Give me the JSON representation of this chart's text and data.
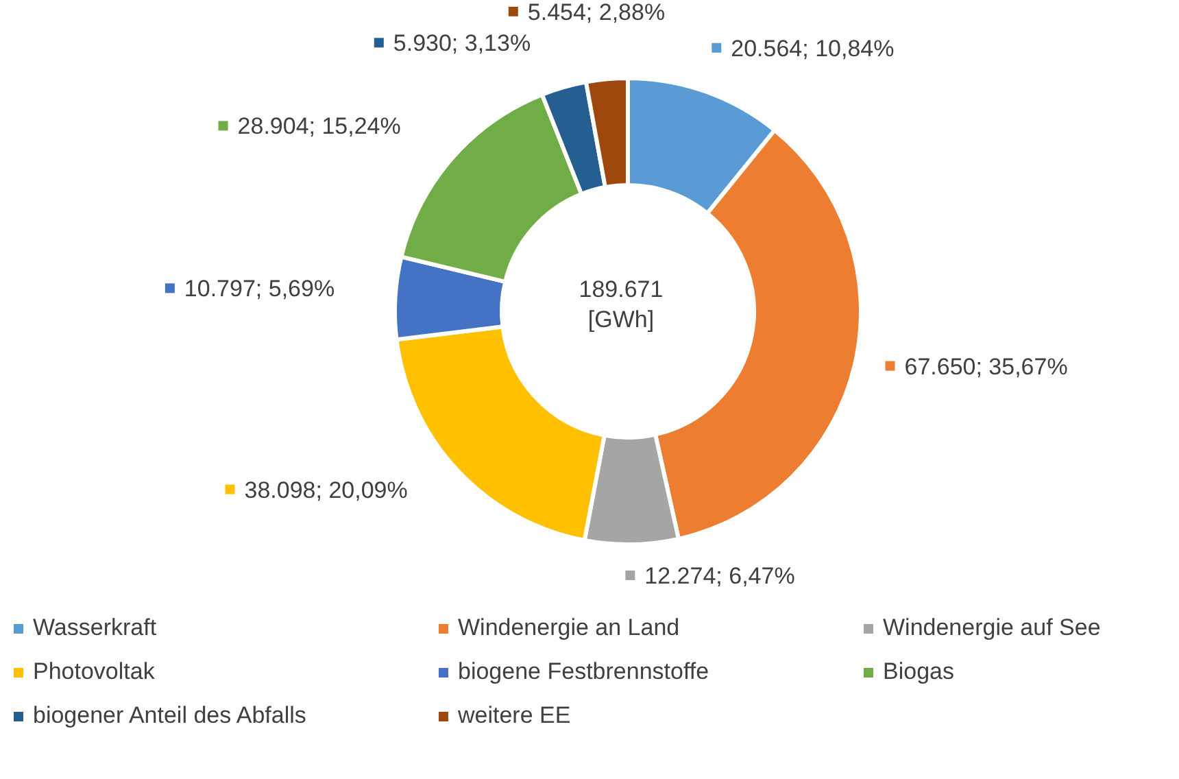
{
  "chart_data": {
    "type": "donut",
    "categories": [
      "Wasserkraft",
      "Windenergie an Land",
      "Windenergie auf See",
      "Photovoltak",
      "biogene Festbrennstoffe",
      "Biogas",
      "biogener Anteil des Abfalls",
      "weitere EE"
    ],
    "values": [
      20564,
      67650,
      12274,
      38098,
      10797,
      28904,
      5930,
      5454
    ],
    "colors": [
      "#5b9bd5",
      "#ed7d31",
      "#a5a5a5",
      "#ffc000",
      "#4472c4",
      "#70ad47",
      "#255e91",
      "#9e480e"
    ],
    "value_labels": [
      "20.564; 10,84%",
      "67.650; 35,67%",
      "12.274; 6,47%",
      "38.098; 20,09%",
      "10.797; 5,69%",
      "28.904; 15,24%",
      "5.930; 3,13%",
      "5.454; 2,88%"
    ],
    "annotations": [
      "189.671",
      "[GWh]"
    ],
    "legend": "bottom"
  }
}
